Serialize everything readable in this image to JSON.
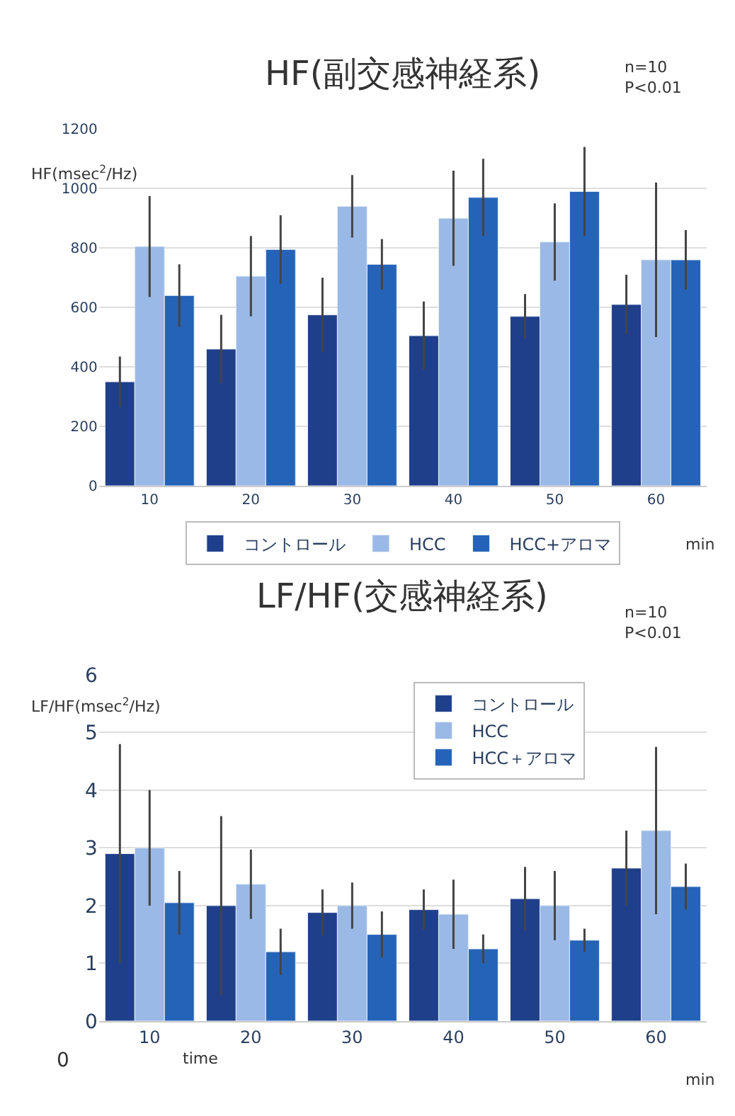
{
  "chart_data": [
    {
      "type": "bar",
      "title": "HF(副交感神経系)",
      "ylabel": "HF(msec$^{2}$/Hz)",
      "categories": [
        "10",
        "20",
        "30",
        "40",
        "50",
        "60"
      ],
      "series": [
        {
          "name": "コントロール",
          "color": "#1f3f8a",
          "values": [
            350,
            460,
            575,
            505,
            570,
            610
          ],
          "errors": [
            85,
            115,
            125,
            115,
            75,
            100
          ]
        },
        {
          "name": "HCC",
          "color": "#9ab9e6",
          "values": [
            805,
            705,
            940,
            900,
            820,
            760
          ],
          "errors": [
            170,
            135,
            105,
            160,
            130,
            260
          ]
        },
        {
          "name": "HCC+アロマ",
          "color": "#2563b8",
          "values": [
            640,
            795,
            745,
            970,
            990,
            760
          ],
          "errors": [
            105,
            115,
            85,
            130,
            150,
            100
          ]
        }
      ],
      "ylim": [
        0,
        1200
      ],
      "yticks": [
        0,
        200,
        400,
        600,
        800,
        1000,
        1200
      ],
      "grid": "y",
      "legend": "bottom",
      "annotations": [
        "n=10\nP<0.01",
        "min"
      ]
    },
    {
      "type": "bar",
      "title": "LF/HF(交感神経系)",
      "ylabel": "LF/HF(msec$^{2}$/Hz)",
      "categories": [
        "10",
        "20",
        "30",
        "40",
        "50",
        "60"
      ],
      "series": [
        {
          "name": "コントロール",
          "color": "#1f3f8a",
          "values": [
            2.9,
            2.0,
            1.88,
            1.93,
            2.12,
            2.65
          ],
          "errors": [
            1.9,
            1.55,
            0.4,
            0.35,
            0.55,
            0.65
          ]
        },
        {
          "name": "HCC",
          "color": "#9ab9e6",
          "values": [
            3.0,
            2.37,
            2.0,
            1.85,
            2.0,
            3.3
          ],
          "errors": [
            1.0,
            0.6,
            0.4,
            0.6,
            0.6,
            1.45
          ]
        },
        {
          "name": "HCC＋アロマ",
          "color": "#2563b8",
          "values": [
            2.05,
            1.2,
            1.5,
            1.25,
            1.4,
            2.33
          ],
          "errors": [
            0.55,
            0.4,
            0.4,
            0.25,
            0.2,
            0.4
          ]
        }
      ],
      "ylim": [
        0,
        6
      ],
      "yticks": [
        0,
        1,
        2,
        3,
        4,
        5,
        6
      ],
      "grid": "y",
      "legend": "top right",
      "annotations": [
        "n=10\nP<0.01",
        "0",
        "time",
        "min"
      ]
    }
  ]
}
